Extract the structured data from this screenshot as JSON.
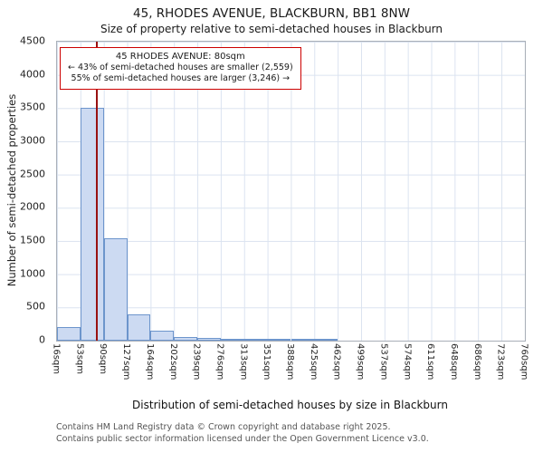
{
  "title": "45, RHODES AVENUE, BLACKBURN, BB1 8NW",
  "subtitle": "Size of property relative to semi-detached houses in Blackburn",
  "annotation": {
    "line1": "45 RHODES AVENUE: 80sqm",
    "line2": "← 43% of semi-detached houses are smaller (2,559)",
    "line3": "55% of semi-detached houses are larger (3,246) →"
  },
  "footer": {
    "line1": "Contains HM Land Registry data © Crown copyright and database right 2025.",
    "line2": "Contains public sector information licensed under the Open Government Licence v3.0."
  },
  "chart_data": {
    "type": "bar",
    "title": "45, RHODES AVENUE, BLACKBURN, BB1 8NW",
    "subtitle": "Size of property relative to semi-detached houses in Blackburn",
    "xlabel": "Distribution of semi-detached houses by size in Blackburn",
    "ylabel": "Number of semi-detached properties",
    "bin_edges_sqm": [
      16,
      53,
      90,
      127,
      164,
      202,
      239,
      276,
      313,
      351,
      388,
      425,
      462,
      499,
      537,
      574,
      611,
      648,
      686,
      723,
      760
    ],
    "tick_labels": [
      "16sqm",
      "53sqm",
      "90sqm",
      "127sqm",
      "164sqm",
      "202sqm",
      "239sqm",
      "276sqm",
      "313sqm",
      "351sqm",
      "388sqm",
      "425sqm",
      "462sqm",
      "499sqm",
      "537sqm",
      "574sqm",
      "611sqm",
      "648sqm",
      "686sqm",
      "723sqm",
      "760sqm"
    ],
    "values": [
      200,
      3500,
      1540,
      390,
      150,
      60,
      35,
      20,
      12,
      8,
      5,
      15,
      0,
      0,
      0,
      0,
      0,
      0,
      0,
      0
    ],
    "ylim": [
      0,
      4500
    ],
    "ytick_step": 500,
    "marker_value_sqm": 80,
    "grid": true,
    "colors": {
      "bar_fill": "#ccdaf2",
      "bar_edge": "#6d95cc",
      "marker_line": "#991111",
      "annotation_border": "#cc0000",
      "grid": "#dbe3f0"
    }
  }
}
